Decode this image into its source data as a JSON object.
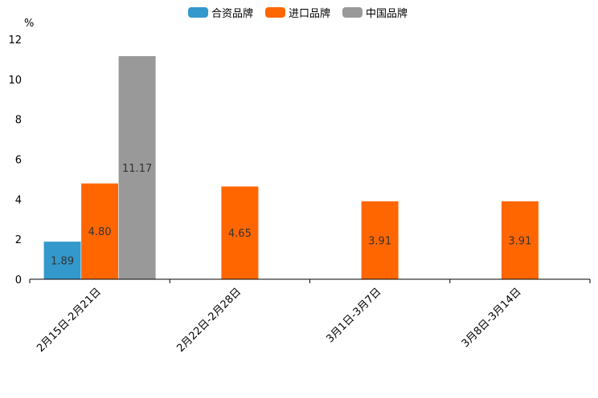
{
  "chart_data": {
    "type": "bar",
    "ylabel": "%",
    "ylim": [
      0,
      12
    ],
    "yticks": [
      "0",
      "2",
      "4",
      "6",
      "8",
      "10",
      "12"
    ],
    "categories": [
      "2月15日-2月21日",
      "2月22日-2月28日",
      "3月1日-3月7日",
      "3月8日-3月14日"
    ],
    "series": [
      {
        "name": "合资品牌",
        "color": "#3399cc",
        "values": [
          1.89,
          null,
          null,
          null
        ],
        "labels": [
          "1.89",
          null,
          null,
          null
        ]
      },
      {
        "name": "进口品牌",
        "color": "#ff6600",
        "values": [
          4.8,
          4.65,
          3.91,
          3.91
        ],
        "labels": [
          "4.80",
          "4.65",
          "3.91",
          "3.91"
        ]
      },
      {
        "name": "中国品牌",
        "color": "#999999",
        "values": [
          11.17,
          null,
          null,
          null
        ],
        "labels": [
          "11.17",
          null,
          null,
          null
        ]
      }
    ],
    "legend": "top-center",
    "grid": false
  }
}
